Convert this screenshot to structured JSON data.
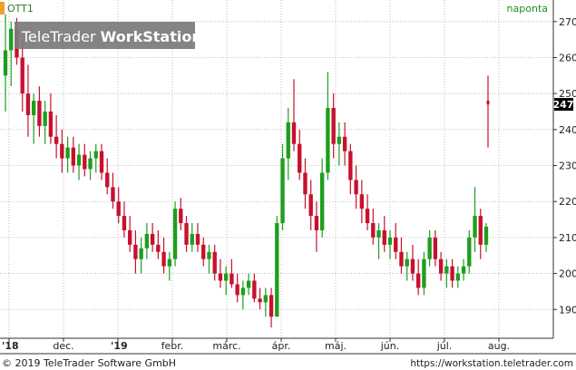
{
  "header": {
    "symbol": "OTT1",
    "interval": "naponta",
    "watermark_part1": "TeleTrader ",
    "watermark_part2": "WorkStation"
  },
  "footer": {
    "copyright": "© 2019 TeleTrader Software GmbH",
    "url": "https://workstation.teletrader.com"
  },
  "colors": {
    "up": "#1e9e1e",
    "down": "#c8102e",
    "grid": "#b0b0b0",
    "accent_bar": "#f0a030",
    "symbol_text": "#2a7d2a",
    "interval_text": "#1e8a1e",
    "last_price_bg": "#000000"
  },
  "chart_data": {
    "type": "candlestick",
    "title": "OTT1",
    "ylim": [
      182,
      276
    ],
    "y_ticks": [
      190,
      200,
      210,
      220,
      230,
      240,
      250,
      260,
      270
    ],
    "x_labels": [
      "'18",
      "dec.",
      "'19",
      "febr.",
      "márc.",
      "ápr.",
      "máj.",
      "jún.",
      "júl.",
      "aug."
    ],
    "last_price": 247,
    "last_price_label": "247",
    "grid": true,
    "series": [
      {
        "o": 255,
        "h": 272,
        "l": 245,
        "c": 262
      },
      {
        "o": 262,
        "h": 270,
        "l": 252,
        "c": 268
      },
      {
        "o": 268,
        "h": 271,
        "l": 258,
        "c": 260
      },
      {
        "o": 260,
        "h": 265,
        "l": 245,
        "c": 250
      },
      {
        "o": 250,
        "h": 258,
        "l": 238,
        "c": 244
      },
      {
        "o": 244,
        "h": 250,
        "l": 236,
        "c": 248
      },
      {
        "o": 248,
        "h": 252,
        "l": 238,
        "c": 241
      },
      {
        "o": 241,
        "h": 248,
        "l": 236,
        "c": 245
      },
      {
        "o": 245,
        "h": 250,
        "l": 236,
        "c": 238
      },
      {
        "o": 238,
        "h": 244,
        "l": 232,
        "c": 236
      },
      {
        "o": 236,
        "h": 240,
        "l": 228,
        "c": 232
      },
      {
        "o": 232,
        "h": 238,
        "l": 228,
        "c": 235
      },
      {
        "o": 235,
        "h": 238,
        "l": 228,
        "c": 230
      },
      {
        "o": 230,
        "h": 236,
        "l": 226,
        "c": 233
      },
      {
        "o": 233,
        "h": 236,
        "l": 227,
        "c": 229
      },
      {
        "o": 229,
        "h": 234,
        "l": 226,
        "c": 232
      },
      {
        "o": 232,
        "h": 236,
        "l": 228,
        "c": 234
      },
      {
        "o": 234,
        "h": 236,
        "l": 226,
        "c": 228
      },
      {
        "o": 228,
        "h": 232,
        "l": 222,
        "c": 224
      },
      {
        "o": 224,
        "h": 228,
        "l": 218,
        "c": 220
      },
      {
        "o": 220,
        "h": 224,
        "l": 214,
        "c": 216
      },
      {
        "o": 216,
        "h": 220,
        "l": 210,
        "c": 212
      },
      {
        "o": 212,
        "h": 216,
        "l": 206,
        "c": 208
      },
      {
        "o": 208,
        "h": 212,
        "l": 200,
        "c": 204
      },
      {
        "o": 204,
        "h": 210,
        "l": 200,
        "c": 207
      },
      {
        "o": 207,
        "h": 214,
        "l": 204,
        "c": 211
      },
      {
        "o": 211,
        "h": 214,
        "l": 206,
        "c": 208
      },
      {
        "o": 208,
        "h": 212,
        "l": 204,
        "c": 206
      },
      {
        "o": 206,
        "h": 210,
        "l": 200,
        "c": 202
      },
      {
        "o": 202,
        "h": 206,
        "l": 198,
        "c": 204
      },
      {
        "o": 204,
        "h": 220,
        "l": 202,
        "c": 218
      },
      {
        "o": 218,
        "h": 221,
        "l": 212,
        "c": 214
      },
      {
        "o": 214,
        "h": 216,
        "l": 206,
        "c": 208
      },
      {
        "o": 208,
        "h": 214,
        "l": 206,
        "c": 211
      },
      {
        "o": 211,
        "h": 214,
        "l": 206,
        "c": 208
      },
      {
        "o": 208,
        "h": 210,
        "l": 202,
        "c": 204
      },
      {
        "o": 204,
        "h": 208,
        "l": 200,
        "c": 206
      },
      {
        "o": 206,
        "h": 208,
        "l": 198,
        "c": 200
      },
      {
        "o": 200,
        "h": 204,
        "l": 196,
        "c": 198
      },
      {
        "o": 198,
        "h": 202,
        "l": 194,
        "c": 200
      },
      {
        "o": 200,
        "h": 204,
        "l": 196,
        "c": 197
      },
      {
        "o": 197,
        "h": 200,
        "l": 192,
        "c": 194
      },
      {
        "o": 194,
        "h": 198,
        "l": 190,
        "c": 196
      },
      {
        "o": 196,
        "h": 200,
        "l": 194,
        "c": 198
      },
      {
        "o": 198,
        "h": 200,
        "l": 192,
        "c": 193
      },
      {
        "o": 193,
        "h": 196,
        "l": 190,
        "c": 192
      },
      {
        "o": 192,
        "h": 196,
        "l": 188,
        "c": 194
      },
      {
        "o": 194,
        "h": 196,
        "l": 185,
        "c": 188
      },
      {
        "o": 188,
        "h": 216,
        "l": 188,
        "c": 214
      },
      {
        "o": 214,
        "h": 236,
        "l": 212,
        "c": 232
      },
      {
        "o": 232,
        "h": 246,
        "l": 226,
        "c": 242
      },
      {
        "o": 242,
        "h": 254,
        "l": 234,
        "c": 236
      },
      {
        "o": 236,
        "h": 240,
        "l": 226,
        "c": 228
      },
      {
        "o": 228,
        "h": 232,
        "l": 218,
        "c": 222
      },
      {
        "o": 222,
        "h": 226,
        "l": 212,
        "c": 216
      },
      {
        "o": 216,
        "h": 220,
        "l": 206,
        "c": 212
      },
      {
        "o": 212,
        "h": 232,
        "l": 210,
        "c": 228
      },
      {
        "o": 228,
        "h": 256,
        "l": 226,
        "c": 246
      },
      {
        "o": 246,
        "h": 250,
        "l": 232,
        "c": 236
      },
      {
        "o": 236,
        "h": 242,
        "l": 230,
        "c": 238
      },
      {
        "o": 238,
        "h": 242,
        "l": 230,
        "c": 234
      },
      {
        "o": 234,
        "h": 236,
        "l": 222,
        "c": 226
      },
      {
        "o": 226,
        "h": 230,
        "l": 218,
        "c": 222
      },
      {
        "o": 222,
        "h": 226,
        "l": 214,
        "c": 218
      },
      {
        "o": 218,
        "h": 222,
        "l": 212,
        "c": 214
      },
      {
        "o": 214,
        "h": 218,
        "l": 208,
        "c": 210
      },
      {
        "o": 210,
        "h": 214,
        "l": 204,
        "c": 212
      },
      {
        "o": 212,
        "h": 216,
        "l": 206,
        "c": 208
      },
      {
        "o": 208,
        "h": 212,
        "l": 204,
        "c": 210
      },
      {
        "o": 210,
        "h": 214,
        "l": 204,
        "c": 206
      },
      {
        "o": 206,
        "h": 210,
        "l": 200,
        "c": 202
      },
      {
        "o": 202,
        "h": 206,
        "l": 198,
        "c": 204
      },
      {
        "o": 204,
        "h": 208,
        "l": 198,
        "c": 200
      },
      {
        "o": 200,
        "h": 204,
        "l": 194,
        "c": 196
      },
      {
        "o": 196,
        "h": 206,
        "l": 194,
        "c": 204
      },
      {
        "o": 204,
        "h": 212,
        "l": 202,
        "c": 210
      },
      {
        "o": 210,
        "h": 212,
        "l": 202,
        "c": 204
      },
      {
        "o": 204,
        "h": 206,
        "l": 198,
        "c": 200
      },
      {
        "o": 200,
        "h": 204,
        "l": 196,
        "c": 202
      },
      {
        "o": 202,
        "h": 204,
        "l": 196,
        "c": 198
      },
      {
        "o": 198,
        "h": 202,
        "l": 196,
        "c": 200
      },
      {
        "o": 200,
        "h": 204,
        "l": 198,
        "c": 202
      },
      {
        "o": 202,
        "h": 212,
        "l": 200,
        "c": 210
      },
      {
        "o": 210,
        "h": 224,
        "l": 206,
        "c": 216
      },
      {
        "o": 216,
        "h": 218,
        "l": 204,
        "c": 208
      },
      {
        "o": 208,
        "h": 214,
        "l": 206,
        "c": 213
      },
      {
        "o": 248,
        "h": 255,
        "l": 235,
        "c": 247
      }
    ]
  }
}
